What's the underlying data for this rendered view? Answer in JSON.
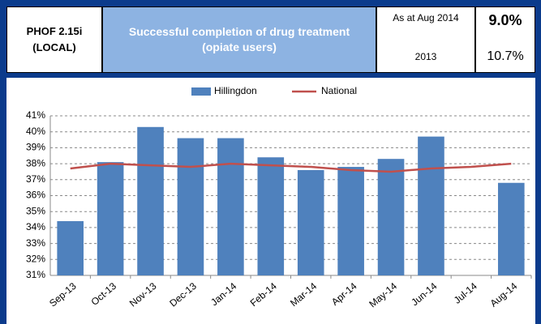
{
  "header": {
    "code": [
      "PHOF 2.15i",
      "(LOCAL)"
    ],
    "title": [
      "Successful completion of drug treatment",
      "(opiate users)"
    ],
    "period_label": "As at Aug 2014",
    "period_value": "9.0%",
    "comparison_label": "2013",
    "comparison_value": "10.7%"
  },
  "chart_data": {
    "type": "bar",
    "categories": [
      "Sep-13",
      "Oct-13",
      "Nov-13",
      "Dec-13",
      "Jan-14",
      "Feb-14",
      "Mar-14",
      "Apr-14",
      "May-14",
      "Jun-14",
      "Jul-14",
      "Aug-14"
    ],
    "series": [
      {
        "name": "Hillingdon",
        "type": "bar",
        "color": "#4f81bd",
        "values": [
          34.4,
          38.1,
          40.3,
          39.6,
          39.6,
          38.4,
          37.6,
          37.8,
          38.3,
          39.7,
          null,
          36.8
        ]
      },
      {
        "name": "National",
        "type": "line",
        "color": "#c0504d",
        "values": [
          37.7,
          38.0,
          37.9,
          37.8,
          38.0,
          37.9,
          37.8,
          37.6,
          37.5,
          37.7,
          37.8,
          38.0
        ]
      }
    ],
    "ylim": [
      31,
      41
    ],
    "yticks": [
      {
        "value": 31,
        "label": "31%"
      },
      {
        "value": 32,
        "label": "32%"
      },
      {
        "value": 33,
        "label": "33%"
      },
      {
        "value": 34,
        "label": "34%"
      },
      {
        "value": 35,
        "label": "35%"
      },
      {
        "value": 36,
        "label": "36%"
      },
      {
        "value": 37,
        "label": "37%"
      },
      {
        "value": 38,
        "label": "38%"
      },
      {
        "value": 39,
        "label": "39%"
      },
      {
        "value": 40,
        "label": "40%"
      },
      {
        "value": 41,
        "label": "41%"
      }
    ],
    "grid": true,
    "legend": "top"
  }
}
